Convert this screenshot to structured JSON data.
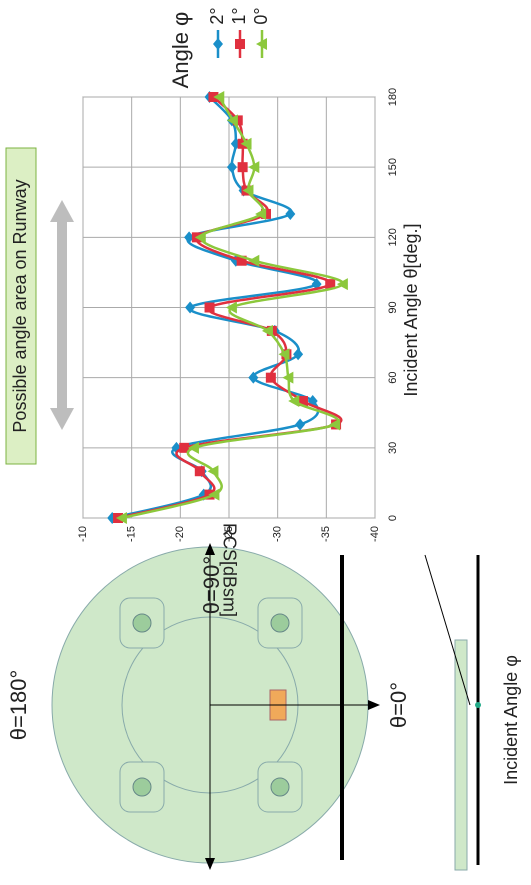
{
  "chart_data": {
    "type": "line",
    "x_label": "Incident Angle θ[deg.]",
    "y_label": "RCS[dBsm]",
    "legend_title": "Angle φ",
    "x": [
      0,
      10,
      20,
      30,
      40,
      50,
      60,
      70,
      80,
      90,
      100,
      110,
      120,
      130,
      140,
      150,
      160,
      170,
      180
    ],
    "xlim": [
      0,
      180
    ],
    "xticks": [
      0,
      30,
      60,
      90,
      120,
      150,
      180
    ],
    "ylim": [
      -40,
      -10
    ],
    "yticks": [
      -40,
      -35,
      -30,
      -25,
      -20,
      -15,
      -10
    ],
    "grid": true,
    "series": [
      {
        "name": "2°",
        "color": "#1a8fc9",
        "marker": "diamond",
        "values": [
          -13.0,
          -22.4,
          -22.2,
          -19.6,
          -32.3,
          -33.6,
          -27.5,
          -32.1,
          -29.7,
          -21.0,
          -34.0,
          -25.7,
          -20.9,
          -31.3,
          -26.5,
          -25.3,
          -25.7,
          -25.3,
          -23.0
        ]
      },
      {
        "name": "1°",
        "color": "#e0303f",
        "marker": "square",
        "values": [
          -13.6,
          -23.0,
          -22.0,
          -20.4,
          -36.0,
          -32.6,
          -29.3,
          -30.9,
          -29.4,
          -23.0,
          -35.4,
          -26.3,
          -21.7,
          -28.8,
          -26.8,
          -26.4,
          -26.4,
          -25.9,
          -23.4
        ]
      },
      {
        "name": "0°",
        "color": "#8cc83c",
        "marker": "triangle",
        "values": [
          -14.0,
          -23.5,
          -23.4,
          -21.4,
          -35.9,
          -31.7,
          -31.1,
          -30.7,
          -29.0,
          -25.3,
          -36.7,
          -27.6,
          -22.1,
          -28.3,
          -27.0,
          -27.6,
          -26.8,
          -25.4,
          -24.0
        ]
      }
    ],
    "annotations": [
      "Possible angle area on Runway",
      "θ=180°",
      "θ=90°",
      "θ=0°",
      "Incident Angle φ"
    ]
  }
}
